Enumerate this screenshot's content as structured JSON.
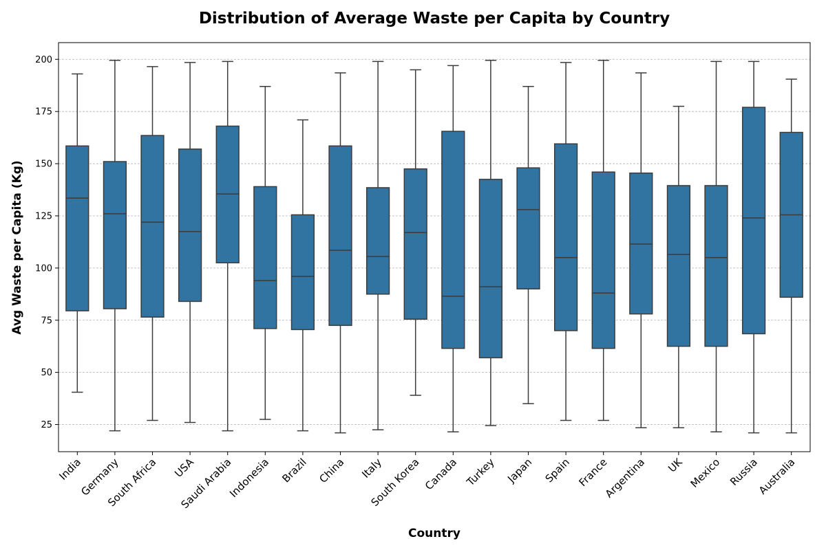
{
  "chart_data": {
    "type": "box",
    "title": "Distribution of Average Waste per Capita by Country",
    "xlabel": "Country",
    "ylabel": "Avg Waste per Capita (Kg)",
    "ylim": [
      12,
      208
    ],
    "yticks": [
      25,
      50,
      75,
      100,
      125,
      150,
      175,
      200
    ],
    "grid": "y-dashed",
    "box_color": "#3274a1",
    "edge_color": "#3b3b3b",
    "categories": [
      "India",
      "Germany",
      "South Africa",
      "USA",
      "Saudi Arabia",
      "Indonesia",
      "Brazil",
      "China",
      "Italy",
      "South Korea",
      "Canada",
      "Turkey",
      "Japan",
      "Spain",
      "France",
      "Argentina",
      "UK",
      "Mexico",
      "Russia",
      "Australia"
    ],
    "boxes": [
      {
        "min": 40.5,
        "q1": 79.5,
        "median": 133.5,
        "q3": 158.5,
        "max": 193
      },
      {
        "min": 22,
        "q1": 80.5,
        "median": 126,
        "q3": 151,
        "max": 199.5
      },
      {
        "min": 27,
        "q1": 76.5,
        "median": 122,
        "q3": 163.5,
        "max": 196.5
      },
      {
        "min": 26,
        "q1": 84,
        "median": 117.5,
        "q3": 157,
        "max": 198.5
      },
      {
        "min": 22,
        "q1": 102.5,
        "median": 135.5,
        "q3": 168,
        "max": 199
      },
      {
        "min": 27.5,
        "q1": 71,
        "median": 94,
        "q3": 139,
        "max": 187
      },
      {
        "min": 22,
        "q1": 70.5,
        "median": 96,
        "q3": 125.5,
        "max": 171
      },
      {
        "min": 21,
        "q1": 72.5,
        "median": 108.5,
        "q3": 158.5,
        "max": 193.5
      },
      {
        "min": 22.5,
        "q1": 87.5,
        "median": 105.5,
        "q3": 138.5,
        "max": 199
      },
      {
        "min": 39,
        "q1": 75.5,
        "median": 117,
        "q3": 147.5,
        "max": 195
      },
      {
        "min": 21.5,
        "q1": 61.5,
        "median": 86.5,
        "q3": 165.5,
        "max": 197
      },
      {
        "min": 24.5,
        "q1": 57,
        "median": 91,
        "q3": 142.5,
        "max": 199.5
      },
      {
        "min": 35,
        "q1": 90,
        "median": 128,
        "q3": 148,
        "max": 187
      },
      {
        "min": 27,
        "q1": 70,
        "median": 105,
        "q3": 159.5,
        "max": 198.5
      },
      {
        "min": 27,
        "q1": 61.5,
        "median": 88,
        "q3": 146,
        "max": 199.5
      },
      {
        "min": 23.5,
        "q1": 78,
        "median": 111.5,
        "q3": 145.5,
        "max": 193.5
      },
      {
        "min": 23.5,
        "q1": 62.5,
        "median": 106.5,
        "q3": 139.5,
        "max": 177.5
      },
      {
        "min": 21.5,
        "q1": 62.5,
        "median": 105,
        "q3": 139.5,
        "max": 199
      },
      {
        "min": 21,
        "q1": 68.5,
        "median": 124,
        "q3": 177,
        "max": 199
      },
      {
        "min": 21,
        "q1": 86,
        "median": 125.5,
        "q3": 165,
        "max": 190.5
      }
    ]
  }
}
